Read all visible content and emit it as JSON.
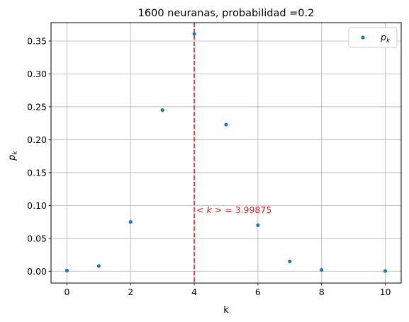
{
  "chart_data": {
    "type": "scatter",
    "title": "1600 neuranas, probabilidad =0.2",
    "xlabel": "k",
    "ylabel_base": "p",
    "ylabel_sub": "k",
    "xlim": [
      -0.5,
      10.5
    ],
    "ylim": [
      -0.018,
      0.378
    ],
    "xticks": [
      0,
      2,
      4,
      6,
      8,
      10
    ],
    "xtick_labels": [
      "0",
      "2",
      "4",
      "6",
      "8",
      "10"
    ],
    "yticks": [
      0.0,
      0.05,
      0.1,
      0.15,
      0.2,
      0.25,
      0.3,
      0.35
    ],
    "ytick_labels": [
      "0.00",
      "0.05",
      "0.10",
      "0.15",
      "0.20",
      "0.25",
      "0.30",
      "0.35"
    ],
    "grid": true,
    "legend_position": "top-right",
    "series": [
      {
        "name_base": "p",
        "name_sub": "k",
        "color": "#1f77b4",
        "x": [
          0,
          1,
          2,
          3,
          4,
          5,
          6,
          7,
          8,
          10
        ],
        "y": [
          0.001,
          0.008,
          0.075,
          0.245,
          0.361,
          0.223,
          0.07,
          0.015,
          0.002,
          0.0005
        ]
      }
    ],
    "vline": {
      "x": 3.99875,
      "color": "#e41a1c",
      "style": "dashed",
      "label_pre": "< ",
      "label_var": "k",
      "label_post": " > = 3.99875",
      "label_y": 0.093
    }
  }
}
